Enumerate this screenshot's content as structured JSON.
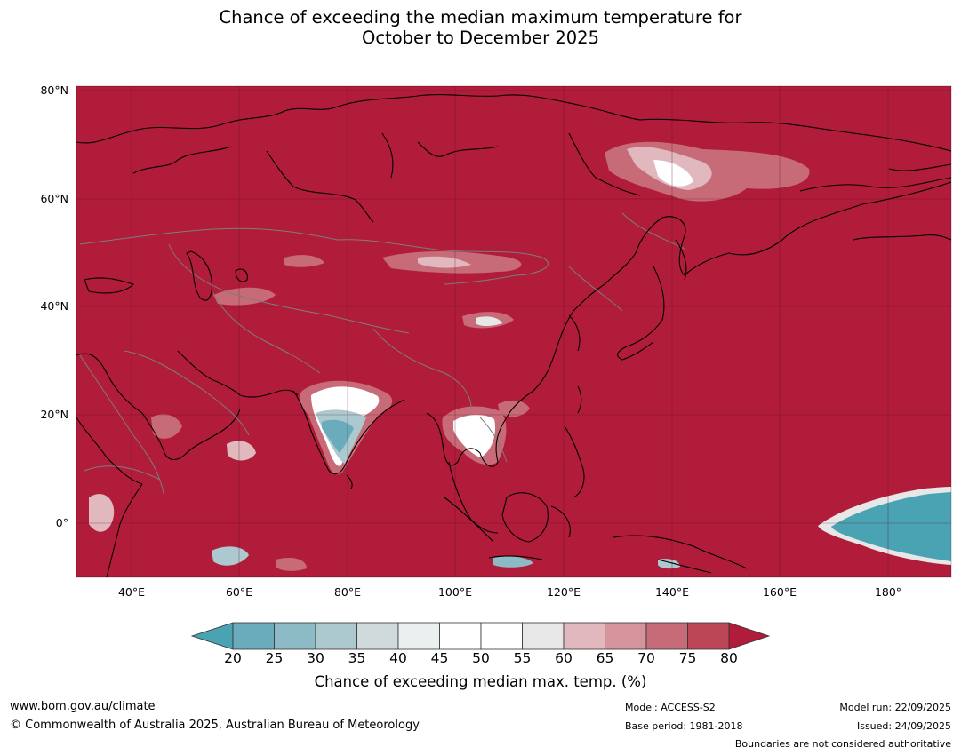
{
  "title": {
    "line1": "Chance of exceeding the median maximum temperature for",
    "line2": "October to December 2025"
  },
  "map": {
    "y_axis_labels": [
      "80°N",
      "60°N",
      "40°N",
      "20°N",
      "0°"
    ],
    "x_axis_labels": [
      "40°E",
      "60°E",
      "80°E",
      "100°E",
      "120°E",
      "140°E",
      "160°E",
      "180°"
    ],
    "ocean_land_fill_color": "#b01c3a",
    "coastline_color": "#000000",
    "boundary_color": "#7d7d7d"
  },
  "colorbar": {
    "title": "Chance of exceeding median max. temp. (%)",
    "ticks": [
      "20",
      "25",
      "30",
      "35",
      "40",
      "45",
      "50",
      "55",
      "60",
      "65",
      "70",
      "75",
      "80"
    ],
    "colors": [
      "#4aa3b2",
      "#6aacbb",
      "#8cbac5",
      "#abc9cf",
      "#d0d9db",
      "#eaeff0",
      "#ffffff",
      "#ffffff",
      "#e7e7e7",
      "#e0b8be",
      "#d5939c",
      "#c86b78",
      "#bd4656",
      "#b01c3a"
    ]
  },
  "footer": {
    "website": "www.bom.gov.au/climate",
    "copyright": "© Commonwealth of Australia 2025, Australian Bureau of Meteorology",
    "model": "Model: ACCESS-S2",
    "base_period": "Base period: 1981-2018",
    "model_run": "Model run: 22/09/2025",
    "issued": "Issued: 24/09/2025",
    "disclaimer": "Boundaries are not considered authoritative"
  }
}
